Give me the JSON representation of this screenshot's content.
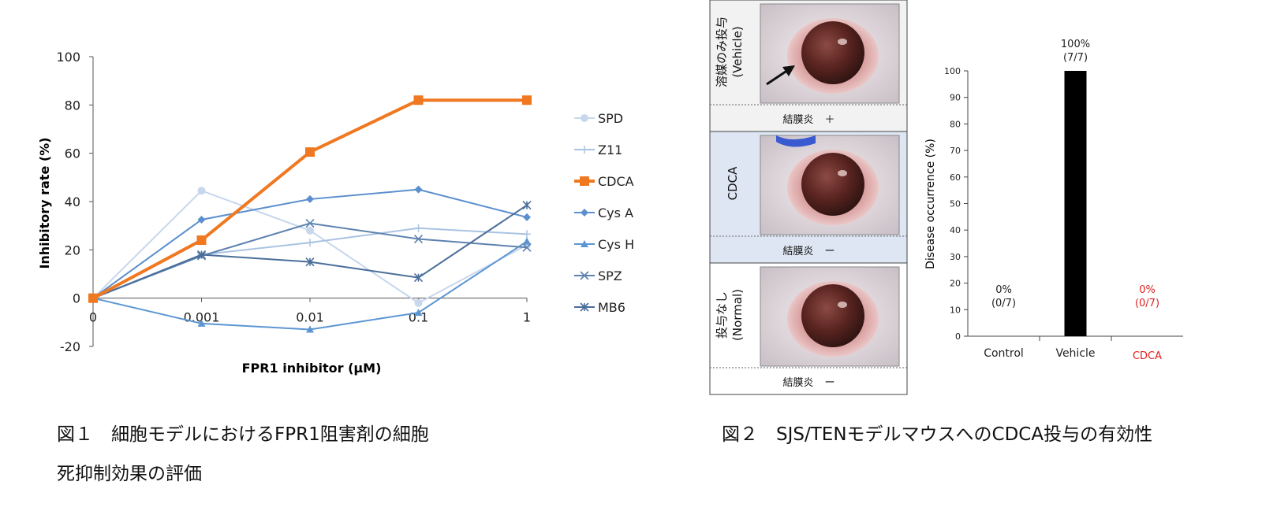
{
  "figure1": {
    "caption_line1": "図１　細胞モデルにおけるFPR1阻害剤の細胞",
    "caption_line2": "死抑制効果の評価"
  },
  "figure2": {
    "caption": "図２　SJS/TENモデルマウスへのCDCA投与の有効性",
    "panels": [
      {
        "label_jp": "溶媒のみ投与",
        "label_en": "(Vehicle)",
        "finding": "結膜炎",
        "sign": "＋",
        "bg": "#f2f2f2"
      },
      {
        "label_jp": "CDCA",
        "label_en": "",
        "finding": "結膜炎",
        "sign": "ー",
        "bg": "#dde6f2"
      },
      {
        "label_jp": "投与なし",
        "label_en": "(Normal)",
        "finding": "結膜炎",
        "sign": "ー",
        "bg": "#ffffff"
      }
    ]
  },
  "colors": {
    "highlight": "#f07820",
    "red_label": "#e02020",
    "bar": "#000000"
  },
  "chart_data": [
    {
      "type": "line",
      "title": "",
      "xlabel": "FPR1 inhibitor (μM)",
      "ylabel": "Inhibitory rate (%)",
      "ylim": [
        -20,
        100
      ],
      "yticks": [
        -20,
        0,
        20,
        40,
        60,
        80,
        100
      ],
      "categories": [
        "0",
        "0.001",
        "0.01",
        "0.1",
        "1"
      ],
      "legend_position": "right",
      "grid": false,
      "series": [
        {
          "name": "SPD",
          "values": [
            0,
            44.5,
            28,
            -2,
            22
          ],
          "color": "#c7d7ec",
          "marker": "circle",
          "width": 2
        },
        {
          "name": "Z11",
          "values": [
            0,
            18,
            23,
            29,
            26.5
          ],
          "color": "#a9c3e2",
          "marker": "plus",
          "width": 2
        },
        {
          "name": "CDCA",
          "values": [
            0,
            24,
            60.5,
            82,
            82
          ],
          "color": "#f07820",
          "marker": "square",
          "width": 4
        },
        {
          "name": "Cys A",
          "values": [
            0,
            32.5,
            41,
            45,
            33.5
          ],
          "color": "#5b8fcd",
          "marker": "diamond",
          "width": 2
        },
        {
          "name": "Cys H",
          "values": [
            0,
            -10.5,
            -13,
            -6,
            23.5
          ],
          "color": "#5c96d2",
          "marker": "triangle",
          "width": 2
        },
        {
          "name": "SPZ",
          "values": [
            0,
            17.5,
            31,
            24.5,
            21
          ],
          "color": "#5d82b0",
          "marker": "x",
          "width": 2
        },
        {
          "name": "MB6",
          "values": [
            0,
            18,
            15,
            8.5,
            38.5
          ],
          "color": "#4a6e99",
          "marker": "star",
          "width": 2
        }
      ]
    },
    {
      "type": "bar",
      "title": "",
      "xlabel": "",
      "ylabel": "Disease occurrence (%)",
      "ylim": [
        0,
        100
      ],
      "yticks": [
        0,
        10,
        20,
        30,
        40,
        50,
        60,
        70,
        80,
        90,
        100
      ],
      "categories": [
        "Control",
        "Vehicle",
        "CDCA"
      ],
      "values": [
        0,
        100,
        0
      ],
      "labels": [
        "0%",
        "100%",
        "0%"
      ],
      "fractions": [
        "(0/7)",
        "(7/7)",
        "(0/7)"
      ],
      "grid": false
    }
  ]
}
